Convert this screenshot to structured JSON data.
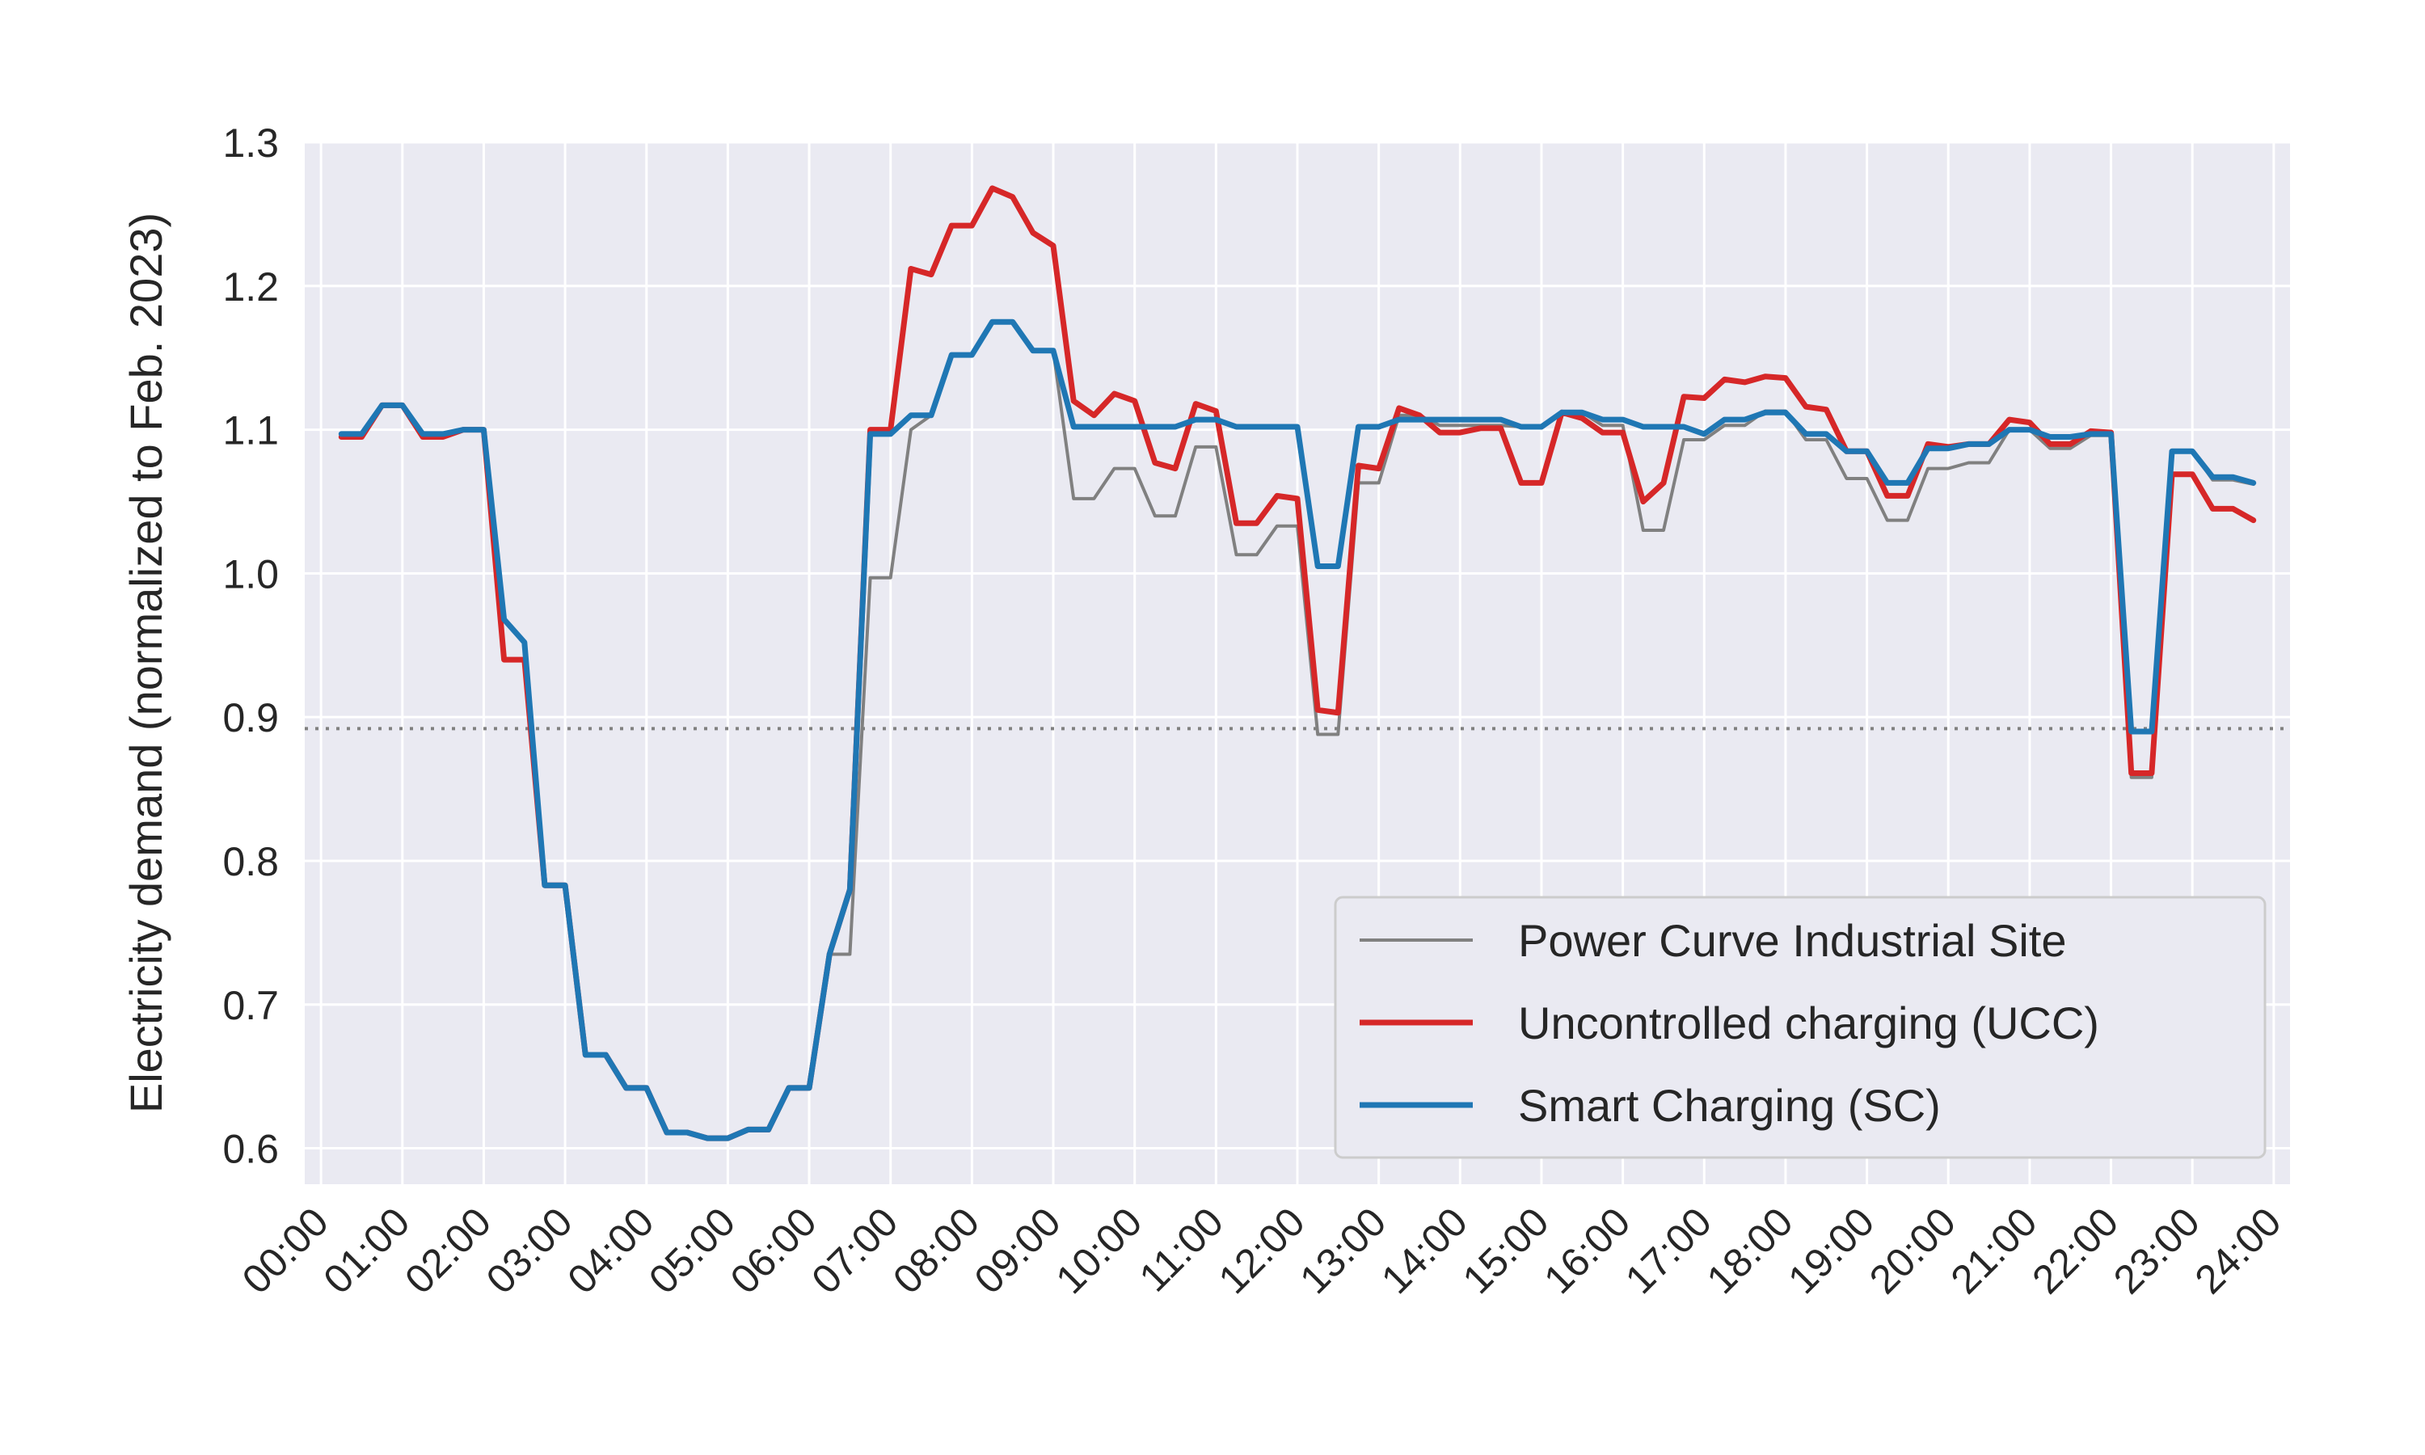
{
  "chart_data": {
    "type": "line",
    "ylabel": "Electricity demand (normalized to Feb. 2023)",
    "xlabel": "",
    "x_tick_labels": [
      "00:00",
      "01:00",
      "02:00",
      "03:00",
      "04:00",
      "05:00",
      "06:00",
      "07:00",
      "08:00",
      "09:00",
      "10:00",
      "11:00",
      "12:00",
      "13:00",
      "14:00",
      "15:00",
      "16:00",
      "17:00",
      "18:00",
      "19:00",
      "20:00",
      "21:00",
      "22:00",
      "23:00",
      "24:00"
    ],
    "y_tick_labels": [
      "0.6",
      "0.7",
      "0.8",
      "0.9",
      "1.0",
      "1.1",
      "1.2",
      "1.3"
    ],
    "xlim_hours": [
      -0.2,
      24.2
    ],
    "ylim": [
      0.575,
      1.3
    ],
    "grid": true,
    "legend_position": "lower right",
    "reference_line": {
      "y": 0.892,
      "style": "dotted",
      "color": "#808080"
    },
    "x_hours": [
      0.25,
      0.5,
      0.75,
      1.0,
      1.25,
      1.5,
      1.75,
      2.0,
      2.25,
      2.5,
      2.75,
      3.0,
      3.25,
      3.5,
      3.75,
      4.0,
      4.25,
      4.5,
      4.75,
      5.0,
      5.25,
      5.5,
      5.75,
      6.0,
      6.25,
      6.5,
      6.75,
      7.0,
      7.25,
      7.5,
      7.75,
      8.0,
      8.25,
      8.5,
      8.75,
      9.0,
      9.25,
      9.5,
      9.75,
      10.0,
      10.25,
      10.5,
      10.75,
      11.0,
      11.25,
      11.5,
      11.75,
      12.0,
      12.25,
      12.5,
      12.75,
      13.0,
      13.25,
      13.5,
      13.75,
      14.0,
      14.25,
      14.5,
      14.75,
      15.0,
      15.25,
      15.5,
      15.75,
      16.0,
      16.25,
      16.5,
      16.75,
      17.0,
      17.25,
      17.5,
      17.75,
      18.0,
      18.25,
      18.5,
      18.75,
      19.0,
      19.25,
      19.5,
      19.75,
      20.0,
      20.25,
      20.5,
      20.75,
      21.0,
      21.25,
      21.5,
      21.75,
      22.0,
      22.25,
      22.5,
      22.75,
      23.0,
      23.25,
      23.5,
      23.75
    ],
    "series": [
      {
        "name": "Power Curve Industrial Site",
        "color": "#808080",
        "values": [
          1.095,
          1.095,
          1.117,
          1.117,
          1.095,
          1.095,
          1.1,
          1.1,
          0.968,
          0.952,
          0.783,
          0.783,
          0.665,
          0.665,
          0.642,
          0.642,
          0.611,
          0.611,
          0.607,
          0.607,
          0.613,
          0.613,
          0.642,
          0.642,
          0.735,
          0.735,
          0.997,
          0.997,
          1.1,
          1.11,
          1.152,
          1.152,
          1.175,
          1.175,
          1.155,
          1.155,
          1.052,
          1.052,
          1.073,
          1.073,
          1.04,
          1.04,
          1.088,
          1.088,
          1.013,
          1.013,
          1.033,
          1.033,
          0.888,
          0.888,
          1.063,
          1.063,
          1.11,
          1.11,
          1.103,
          1.103,
          1.103,
          1.103,
          1.102,
          1.102,
          1.112,
          1.112,
          1.103,
          1.103,
          1.03,
          1.03,
          1.093,
          1.093,
          1.103,
          1.103,
          1.113,
          1.113,
          1.093,
          1.093,
          1.066,
          1.066,
          1.037,
          1.037,
          1.073,
          1.073,
          1.077,
          1.077,
          1.1,
          1.1,
          1.087,
          1.087,
          1.096,
          1.096,
          0.858,
          0.858,
          1.085,
          1.085,
          1.065,
          1.065,
          1.062
        ]
      },
      {
        "name": "Uncontrolled charging (UCC)",
        "color": "#d62728",
        "values": [
          1.095,
          1.095,
          1.117,
          1.117,
          1.095,
          1.095,
          1.1,
          1.1,
          0.94,
          0.94,
          0.783,
          0.783,
          0.665,
          0.665,
          0.642,
          0.642,
          0.611,
          0.611,
          0.607,
          0.607,
          0.613,
          0.613,
          0.642,
          0.642,
          0.735,
          0.78,
          1.1,
          1.1,
          1.212,
          1.208,
          1.242,
          1.242,
          1.268,
          1.262,
          1.237,
          1.228,
          1.12,
          1.11,
          1.125,
          1.12,
          1.077,
          1.073,
          1.118,
          1.113,
          1.035,
          1.035,
          1.054,
          1.052,
          0.905,
          0.903,
          1.075,
          1.073,
          1.115,
          1.11,
          1.098,
          1.098,
          1.101,
          1.101,
          1.063,
          1.063,
          1.112,
          1.108,
          1.098,
          1.098,
          1.05,
          1.063,
          1.123,
          1.122,
          1.135,
          1.133,
          1.137,
          1.136,
          1.116,
          1.114,
          1.085,
          1.085,
          1.054,
          1.054,
          1.09,
          1.088,
          1.09,
          1.09,
          1.107,
          1.105,
          1.09,
          1.09,
          1.099,
          1.098,
          0.861,
          0.861,
          1.069,
          1.069,
          1.045,
          1.045,
          1.037
        ]
      },
      {
        "name": "Smart Charging (SC)",
        "color": "#1f77b4",
        "values": [
          1.097,
          1.097,
          1.117,
          1.117,
          1.097,
          1.097,
          1.1,
          1.1,
          0.968,
          0.952,
          0.783,
          0.783,
          0.665,
          0.665,
          0.642,
          0.642,
          0.611,
          0.611,
          0.607,
          0.607,
          0.613,
          0.613,
          0.642,
          0.642,
          0.735,
          0.78,
          1.097,
          1.097,
          1.11,
          1.11,
          1.152,
          1.152,
          1.175,
          1.175,
          1.155,
          1.155,
          1.102,
          1.102,
          1.102,
          1.102,
          1.102,
          1.102,
          1.107,
          1.107,
          1.102,
          1.102,
          1.102,
          1.102,
          1.005,
          1.005,
          1.102,
          1.102,
          1.107,
          1.107,
          1.107,
          1.107,
          1.107,
          1.107,
          1.102,
          1.102,
          1.112,
          1.112,
          1.107,
          1.107,
          1.102,
          1.102,
          1.102,
          1.097,
          1.107,
          1.107,
          1.112,
          1.112,
          1.097,
          1.097,
          1.085,
          1.085,
          1.063,
          1.063,
          1.087,
          1.087,
          1.09,
          1.09,
          1.1,
          1.1,
          1.095,
          1.095,
          1.097,
          1.097,
          0.89,
          0.89,
          1.085,
          1.085,
          1.067,
          1.067,
          1.063
        ]
      }
    ]
  }
}
